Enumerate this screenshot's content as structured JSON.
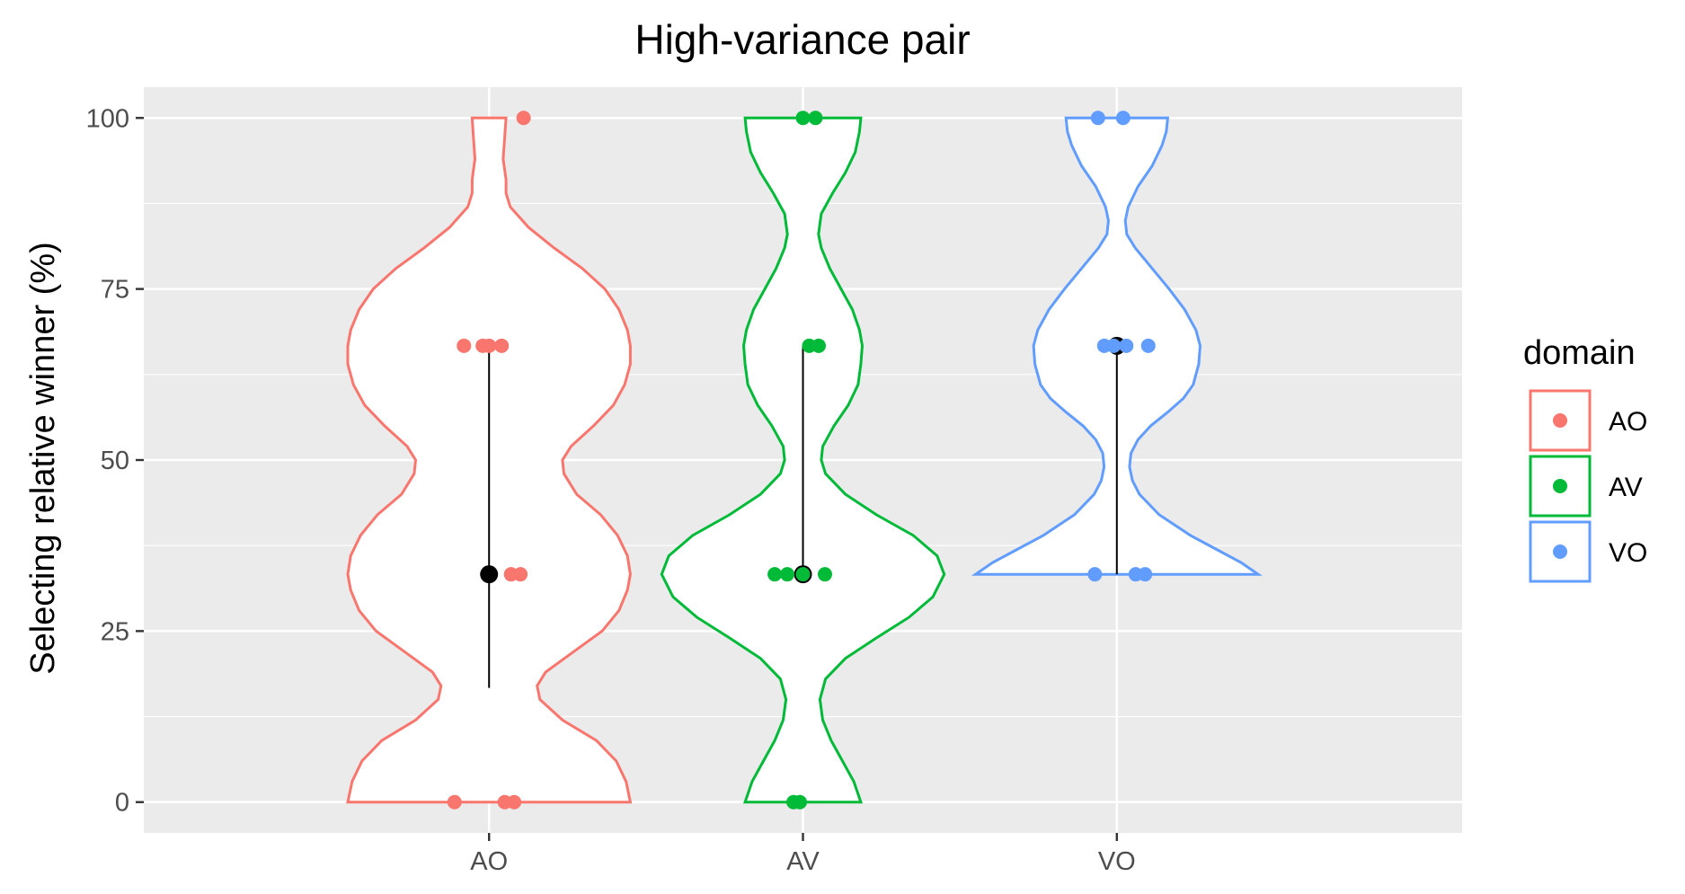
{
  "chart_data": {
    "type": "violin",
    "title": "High-variance pair",
    "xlabel": "",
    "ylabel": "Selecting relative winner (%)",
    "ylim": [
      -4.5,
      104.5
    ],
    "y_ticks": [
      0,
      25,
      50,
      75,
      100
    ],
    "y_tick_labels": [
      "0",
      "25",
      "50",
      "75",
      "100"
    ],
    "categories": [
      "AO",
      "AV",
      "VO"
    ],
    "grid": true,
    "legend": {
      "title": "domain",
      "position": "right",
      "entries": [
        "AO",
        "AV",
        "VO"
      ]
    },
    "colors": {
      "AO": "#F8766D",
      "AV": "#00BA38",
      "VO": "#619CFF",
      "summary": "#000000",
      "panel": "#EBEBEB",
      "grid": "#FFFFFF"
    },
    "series": [
      {
        "name": "AO",
        "points": [
          {
            "dx": -0.11,
            "y": 0
          },
          {
            "dx": 0.05,
            "y": 0
          },
          {
            "dx": 0.08,
            "y": 0
          },
          {
            "dx": 0.07,
            "y": 33.3
          },
          {
            "dx": 0.1,
            "y": 33.3
          },
          {
            "dx": -0.08,
            "y": 66.7
          },
          {
            "dx": -0.02,
            "y": 66.7
          },
          {
            "dx": 0.0,
            "y": 66.7
          },
          {
            "dx": 0.04,
            "y": 66.7
          },
          {
            "dx": 0.11,
            "y": 100
          }
        ],
        "summary": {
          "center": 33.3,
          "low": 16.7,
          "high": 66.7
        },
        "violin_density": [
          [
            0,
            1.0
          ],
          [
            3,
            0.97
          ],
          [
            6,
            0.9
          ],
          [
            9,
            0.76
          ],
          [
            12,
            0.52
          ],
          [
            15,
            0.36
          ],
          [
            17,
            0.34
          ],
          [
            19,
            0.4
          ],
          [
            22,
            0.6
          ],
          [
            25,
            0.8
          ],
          [
            28,
            0.92
          ],
          [
            31,
            0.98
          ],
          [
            33.3,
            1.0
          ],
          [
            36,
            0.98
          ],
          [
            39,
            0.91
          ],
          [
            42,
            0.79
          ],
          [
            45,
            0.62
          ],
          [
            48,
            0.53
          ],
          [
            50,
            0.52
          ],
          [
            52,
            0.58
          ],
          [
            55,
            0.74
          ],
          [
            58,
            0.88
          ],
          [
            61,
            0.96
          ],
          [
            64,
            1.0
          ],
          [
            66.7,
            1.0
          ],
          [
            69,
            0.98
          ],
          [
            72,
            0.92
          ],
          [
            75,
            0.82
          ],
          [
            78,
            0.66
          ],
          [
            81,
            0.46
          ],
          [
            84,
            0.28
          ],
          [
            87,
            0.15
          ],
          [
            89,
            0.12
          ],
          [
            91,
            0.12
          ],
          [
            94,
            0.1
          ],
          [
            97,
            0.11
          ],
          [
            100,
            0.12
          ]
        ]
      },
      {
        "name": "AV",
        "points": [
          {
            "dx": -0.03,
            "y": 0
          },
          {
            "dx": -0.01,
            "y": 0
          },
          {
            "dx": -0.09,
            "y": 33.3
          },
          {
            "dx": -0.05,
            "y": 33.3
          },
          {
            "dx": 0.0,
            "y": 33.3
          },
          {
            "dx": 0.07,
            "y": 33.3
          },
          {
            "dx": 0.02,
            "y": 66.7
          },
          {
            "dx": 0.05,
            "y": 66.7
          },
          {
            "dx": 0.0,
            "y": 100
          },
          {
            "dx": 0.04,
            "y": 100
          }
        ],
        "summary": {
          "center": 33.3,
          "low": 33.3,
          "high": 66.7
        },
        "violin_density": [
          [
            0,
            0.41
          ],
          [
            3,
            0.36
          ],
          [
            6,
            0.28
          ],
          [
            9,
            0.2
          ],
          [
            12,
            0.14
          ],
          [
            15,
            0.12
          ],
          [
            18,
            0.16
          ],
          [
            21,
            0.3
          ],
          [
            24,
            0.52
          ],
          [
            27,
            0.75
          ],
          [
            30,
            0.92
          ],
          [
            33.3,
            1.0
          ],
          [
            36,
            0.95
          ],
          [
            39,
            0.78
          ],
          [
            42,
            0.52
          ],
          [
            45,
            0.3
          ],
          [
            48,
            0.16
          ],
          [
            50,
            0.13
          ],
          [
            52,
            0.14
          ],
          [
            55,
            0.22
          ],
          [
            58,
            0.32
          ],
          [
            61,
            0.39
          ],
          [
            64,
            0.41
          ],
          [
            66.7,
            0.42
          ],
          [
            69,
            0.4
          ],
          [
            72,
            0.35
          ],
          [
            75,
            0.27
          ],
          [
            78,
            0.19
          ],
          [
            81,
            0.13
          ],
          [
            83,
            0.11
          ],
          [
            86,
            0.13
          ],
          [
            89,
            0.21
          ],
          [
            92,
            0.3
          ],
          [
            95,
            0.37
          ],
          [
            98,
            0.4
          ],
          [
            100,
            0.41
          ]
        ]
      },
      {
        "name": "VO",
        "points": [
          {
            "dx": -0.07,
            "y": 33.3
          },
          {
            "dx": 0.06,
            "y": 33.3
          },
          {
            "dx": 0.09,
            "y": 33.3
          },
          {
            "dx": -0.04,
            "y": 66.7
          },
          {
            "dx": -0.01,
            "y": 66.7
          },
          {
            "dx": 0.03,
            "y": 66.7
          },
          {
            "dx": 0.1,
            "y": 66.7
          },
          {
            "dx": -0.06,
            "y": 100
          },
          {
            "dx": 0.02,
            "y": 100
          }
        ],
        "summary": {
          "center": 66.7,
          "low": 33.3,
          "high": 66.7
        },
        "violin_density": [
          [
            33.3,
            1.0
          ],
          [
            35,
            0.88
          ],
          [
            37,
            0.7
          ],
          [
            39,
            0.52
          ],
          [
            42,
            0.3
          ],
          [
            45,
            0.16
          ],
          [
            47,
            0.11
          ],
          [
            49,
            0.09
          ],
          [
            51,
            0.1
          ],
          [
            53,
            0.15
          ],
          [
            55,
            0.24
          ],
          [
            57,
            0.36
          ],
          [
            59,
            0.47
          ],
          [
            61,
            0.54
          ],
          [
            64,
            0.58
          ],
          [
            66.7,
            0.59
          ],
          [
            69,
            0.56
          ],
          [
            72,
            0.48
          ],
          [
            75,
            0.37
          ],
          [
            78,
            0.25
          ],
          [
            81,
            0.13
          ],
          [
            83,
            0.07
          ],
          [
            85,
            0.06
          ],
          [
            87,
            0.08
          ],
          [
            90,
            0.15
          ],
          [
            93,
            0.25
          ],
          [
            96,
            0.32
          ],
          [
            98,
            0.35
          ],
          [
            100,
            0.36
          ]
        ]
      }
    ]
  }
}
